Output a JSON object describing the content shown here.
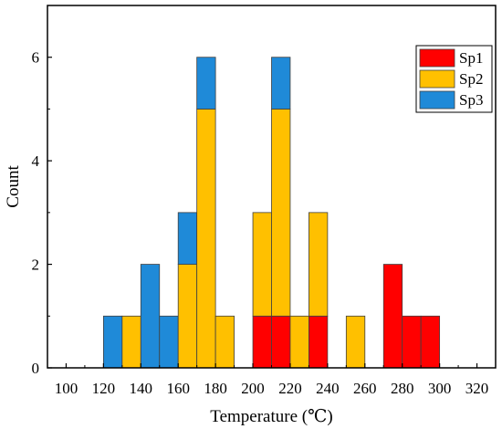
{
  "chart_data": {
    "type": "bar",
    "stacked": true,
    "xlabel": "Temperature (℃)",
    "ylabel": "Count",
    "xlim": [
      90,
      330
    ],
    "ylim": [
      0,
      7
    ],
    "x_ticks": [
      100,
      120,
      140,
      160,
      180,
      200,
      220,
      240,
      260,
      280,
      300,
      320
    ],
    "y_ticks": [
      0,
      2,
      4,
      6
    ],
    "bin_width": 10,
    "bins": [
      125,
      135,
      145,
      155,
      165,
      175,
      185,
      205,
      215,
      225,
      235,
      255,
      275,
      285,
      295
    ],
    "series": [
      {
        "name": "Sp1",
        "color": "#ff0000",
        "values": [
          0,
          0,
          0,
          0,
          0,
          0,
          0,
          1,
          1,
          0,
          1,
          0,
          2,
          1,
          1
        ]
      },
      {
        "name": "Sp2",
        "color": "#ffc000",
        "values": [
          0,
          1,
          0,
          0,
          2,
          5,
          1,
          2,
          4,
          1,
          2,
          1,
          0,
          0,
          0
        ]
      },
      {
        "name": "Sp3",
        "color": "#1f8ad8",
        "values": [
          1,
          0,
          2,
          1,
          1,
          1,
          0,
          0,
          1,
          0,
          0,
          0,
          0,
          0,
          0
        ]
      }
    ],
    "legend": {
      "position": "top-right",
      "entries": [
        "Sp1",
        "Sp2",
        "Sp3"
      ]
    },
    "grid": false
  }
}
